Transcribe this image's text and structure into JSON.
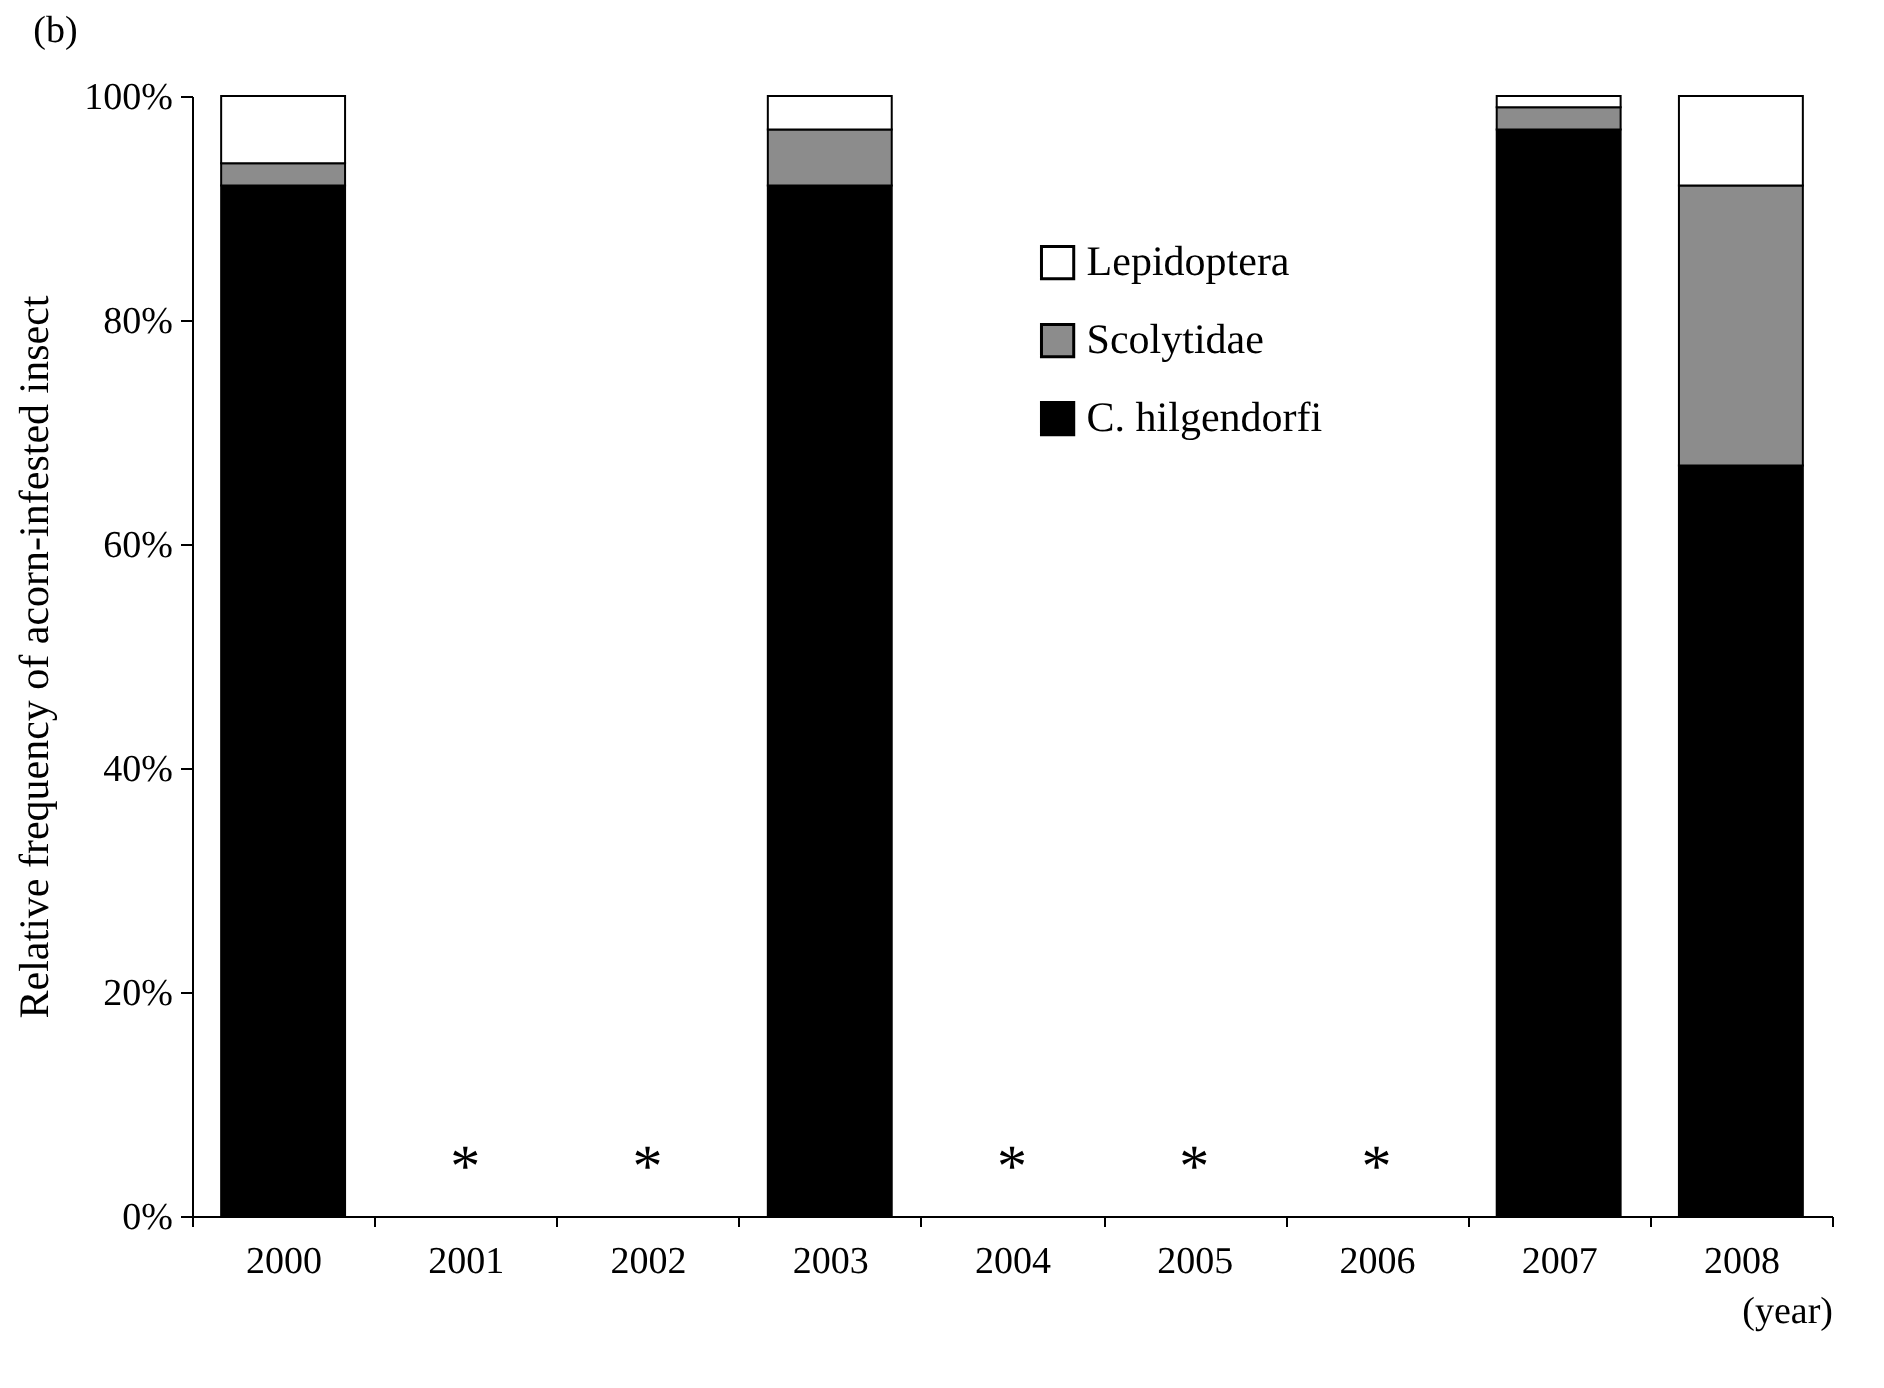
{
  "chart_data": {
    "type": "bar",
    "title": "(b)",
    "xlabel": "(year)",
    "ylabel": "Relative frequency of acorn-infested insect",
    "categories": [
      "2000",
      "2001",
      "2002",
      "2003",
      "2004",
      "2005",
      "2006",
      "2007",
      "2008"
    ],
    "stacked": true,
    "series": [
      {
        "name": "C. hilgendorfi",
        "color": "#000000",
        "values": [
          92,
          null,
          null,
          92,
          null,
          null,
          null,
          97,
          67
        ]
      },
      {
        "name": "Scolytidae",
        "color": "#8c8c8c",
        "values": [
          2,
          null,
          null,
          5,
          null,
          null,
          null,
          2,
          25
        ]
      },
      {
        "name": "Lepidoptera",
        "color": "#ffffff",
        "values": [
          6,
          null,
          null,
          3,
          null,
          null,
          null,
          1,
          8
        ]
      }
    ],
    "ylim": [
      0,
      100
    ],
    "yticks": [
      {
        "value": 0,
        "label": "0%"
      },
      {
        "value": 20,
        "label": "20%"
      },
      {
        "value": 40,
        "label": "40%"
      },
      {
        "value": 60,
        "label": "60%"
      },
      {
        "value": 80,
        "label": "80%"
      },
      {
        "value": 100,
        "label": "100%"
      }
    ],
    "annotations": [
      "*",
      "*",
      "*",
      "*",
      "*"
    ],
    "grid": false,
    "legend": "top right"
  }
}
